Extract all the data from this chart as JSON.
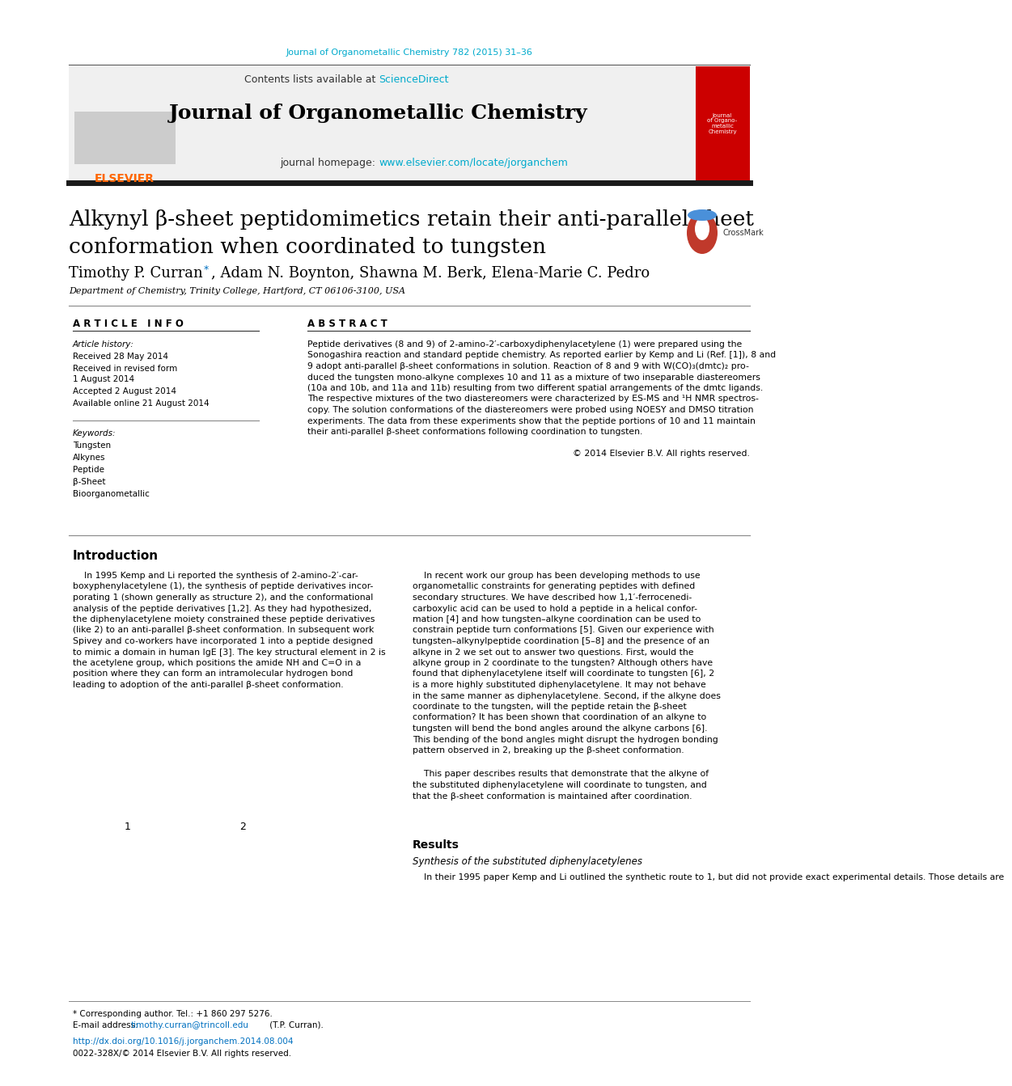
{
  "page_bg": "#ffffff",
  "header_citation": "Journal of Organometallic Chemistry 782 (2015) 31–36",
  "header_citation_color": "#00aacc",
  "journal_header_bg": "#f0f0f0",
  "journal_name": "Journal of Organometallic Chemistry",
  "journal_homepage_prefix": "journal homepage: ",
  "journal_homepage_url": "www.elsevier.com/locate/jorganchem",
  "homepage_color": "#00aacc",
  "article_title_line1": "Alkynyl β-sheet peptidomimetics retain their anti-parallel sheet",
  "article_title_line2": "conformation when coordinated to tungsten",
  "affiliation": "Department of Chemistry, Trinity College, Hartford, CT 06106-3100, USA",
  "article_info_header": "A R T I C L E   I N F O",
  "abstract_header": "A B S T R A C T",
  "article_history_label": "Article history:",
  "received": "Received 28 May 2014",
  "received_revised": "Received in revised form",
  "revised_date": "1 August 2014",
  "accepted": "Accepted 2 August 2014",
  "available": "Available online 21 August 2014",
  "keywords_label": "Keywords:",
  "keywords": [
    "Tungsten",
    "Alkynes",
    "Peptide",
    "β-Sheet",
    "Bioorganometallic"
  ],
  "copyright": "© 2014 Elsevier B.V. All rights reserved.",
  "intro_header": "Introduction",
  "results_header": "Results",
  "results_subheader": "Synthesis of the substituted diphenylacetylenes",
  "results_text": "    In their 1995 paper Kemp and Li outlined the synthetic route to 1, but did not provide exact experimental details. Those details are",
  "footer_note": "* Corresponding author. Tel.: +1 860 297 5276.",
  "footer_email_prefix": "E-mail address: ",
  "footer_email": "timothy.curran@trincoll.edu",
  "footer_email_suffix": " (T.P. Curran).",
  "footer_doi": "http://dx.doi.org/10.1016/j.jorganchem.2014.08.004",
  "footer_issn": "0022-328X/© 2014 Elsevier B.V. All rights reserved.",
  "link_color": "#0070c0",
  "text_color": "#000000",
  "header_box_color": "#f0f0f0",
  "thick_divider_color": "#1a1a1a",
  "abstract_lines": [
    "Peptide derivatives (8 and 9) of 2-amino-2′-carboxydiphenylacetylene (1) were prepared using the",
    "Sonogashira reaction and standard peptide chemistry. As reported earlier by Kemp and Li (Ref. [1]), 8 and",
    "9 adopt anti-parallel β-sheet conformations in solution. Reaction of 8 and 9 with W(CO)₃(dmtc)₂ pro-",
    "duced the tungsten mono-alkyne complexes 10 and 11 as a mixture of two inseparable diastereomers",
    "(10a and 10b, and 11a and 11b) resulting from two different spatial arrangements of the dmtc ligands.",
    "The respective mixtures of the two diastereomers were characterized by ES-MS and ¹H NMR spectros-",
    "copy. The solution conformations of the diastereomers were probed using NOESY and DMSO titration",
    "experiments. The data from these experiments show that the peptide portions of 10 and 11 maintain",
    "their anti-parallel β-sheet conformations following coordination to tungsten."
  ],
  "intro_left": [
    "    In 1995 Kemp and Li reported the synthesis of 2-amino-2′-car-",
    "boxyphenylacetylene (1), the synthesis of peptide derivatives incor-",
    "porating 1 (shown generally as structure 2), and the conformational",
    "analysis of the peptide derivatives [1,2]. As they had hypothesized,",
    "the diphenylacetylene moiety constrained these peptide derivatives",
    "(like 2) to an anti-parallel β-sheet conformation. In subsequent work",
    "Spivey and co-workers have incorporated 1 into a peptide designed",
    "to mimic a domain in human IgE [3]. The key structural element in 2 is",
    "the acetylene group, which positions the amide NH and C=O in a",
    "position where they can form an intramolecular hydrogen bond",
    "leading to adoption of the anti-parallel β-sheet conformation."
  ],
  "intro_right": [
    "    In recent work our group has been developing methods to use",
    "organometallic constraints for generating peptides with defined",
    "secondary structures. We have described how 1,1′-ferrocenedi-",
    "carboxylic acid can be used to hold a peptide in a helical confor-",
    "mation [4] and how tungsten–alkyne coordination can be used to",
    "constrain peptide turn conformations [5]. Given our experience with",
    "tungsten–alkynylpeptide coordination [5–8] and the presence of an",
    "alkyne in 2 we set out to answer two questions. First, would the",
    "alkyne group in 2 coordinate to the tungsten? Although others have",
    "found that diphenylacetylene itself will coordinate to tungsten [6], 2",
    "is a more highly substituted diphenylacetylene. It may not behave",
    "in the same manner as diphenylacetylene. Second, if the alkyne does",
    "coordinate to the tungsten, will the peptide retain the β-sheet",
    "conformation? It has been shown that coordination of an alkyne to",
    "tungsten will bend the bond angles around the alkyne carbons [6].",
    "This bending of the bond angles might disrupt the hydrogen bonding",
    "pattern observed in 2, breaking up the β-sheet conformation."
  ],
  "intro_right2": [
    "    This paper describes results that demonstrate that the alkyne of",
    "the substituted diphenylacetylene will coordinate to tungsten, and",
    "that the β-sheet conformation is maintained after coordination."
  ]
}
